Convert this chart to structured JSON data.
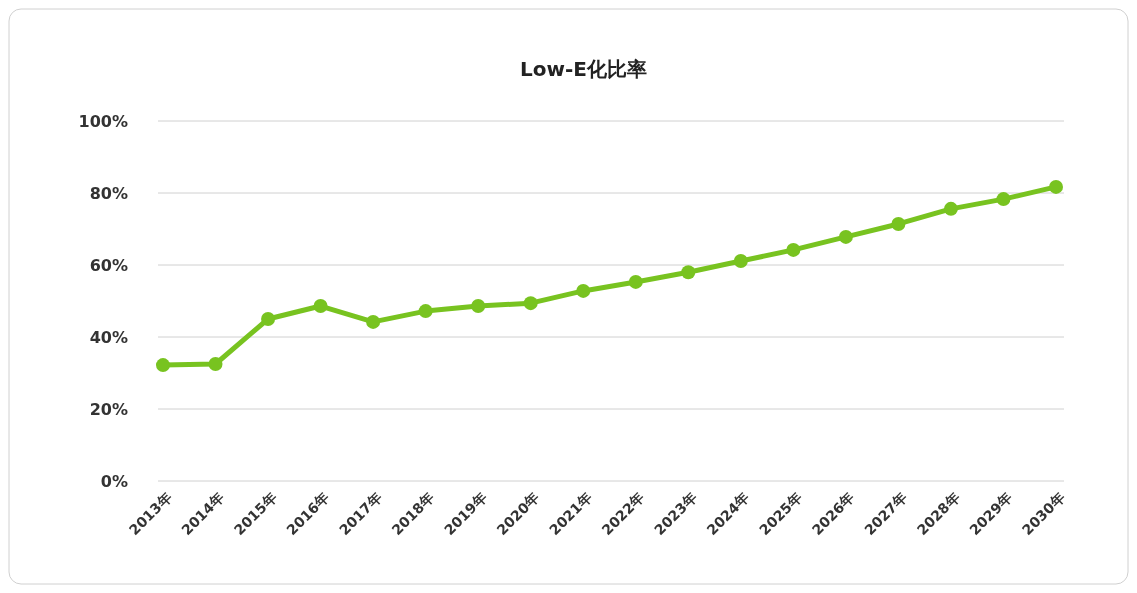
{
  "chart_data": {
    "type": "line",
    "title": "Low-E化比率",
    "categories": [
      "2013年",
      "2014年",
      "2015年",
      "2016年",
      "2017年",
      "2018年",
      "2019年",
      "2020年",
      "2021年",
      "2022年",
      "2023年",
      "2024年",
      "2025年",
      "2026年",
      "2027年",
      "2028年",
      "2029年",
      "2030年"
    ],
    "series": [
      {
        "color": "#78c320",
        "values": [
          32.2,
          32.5,
          45,
          48.6,
          44.2,
          47.2,
          48.6,
          49.4,
          52.8,
          55.3,
          58,
          61.1,
          64.2,
          67.8,
          71.4,
          75.6,
          78.3,
          81.7
        ]
      }
    ],
    "ylim": [
      0,
      100
    ],
    "yticks": [
      {
        "value": 0,
        "label": "0%"
      },
      {
        "value": 20,
        "label": "20%"
      },
      {
        "value": 40,
        "label": "40%"
      },
      {
        "value": 60,
        "label": "60%"
      },
      {
        "value": 80,
        "label": "80%"
      },
      {
        "value": 100,
        "label": "100%"
      }
    ],
    "grid": "y",
    "marker": "circle",
    "line_style": "solid"
  }
}
